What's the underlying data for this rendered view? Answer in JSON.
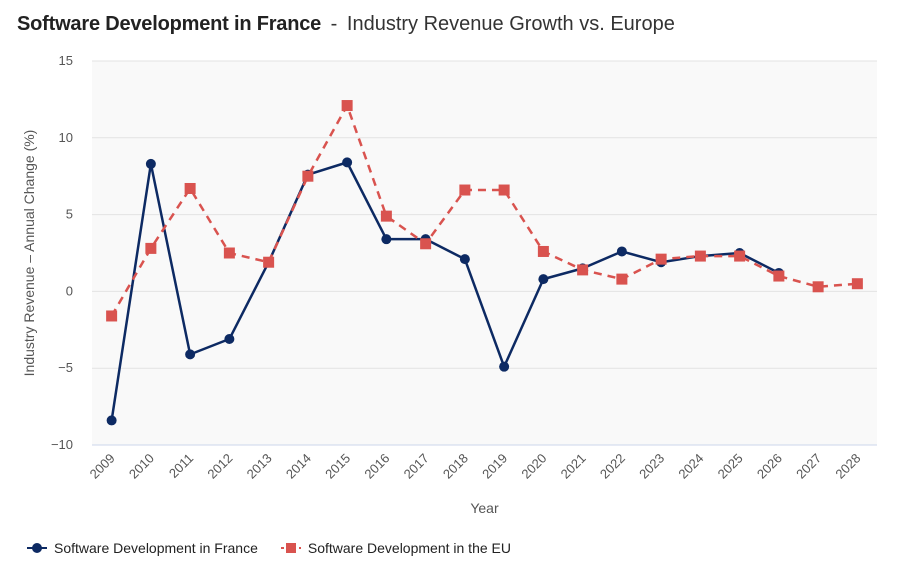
{
  "title": {
    "main": "Software Development in France",
    "separator": "-",
    "subtitle": "Industry Revenue Growth vs. Europe"
  },
  "colors": {
    "france": "#0d2a63",
    "eu": "#d9534f",
    "plot_background": "#f9f9f9",
    "gridline": "#e3e3e3",
    "axis_line": "#ccd6eb"
  },
  "chart_data": {
    "type": "line",
    "title": "Software Development in France - Industry Revenue Growth vs. Europe",
    "xlabel": "Year",
    "ylabel": "Industry Revenue – Annual Change (%)",
    "ylim": [
      -10,
      15
    ],
    "yticks": [
      -10,
      -5,
      0,
      5,
      10,
      15
    ],
    "ytick_labels": [
      "−10",
      "−5",
      "0",
      "5",
      "10",
      "15"
    ],
    "grid": true,
    "legend_position": "bottom-left",
    "x": [
      "2009",
      "2010",
      "2011",
      "2012",
      "2013",
      "2014",
      "2015",
      "2016",
      "2017",
      "2018",
      "2019",
      "2020",
      "2021",
      "2022",
      "2023",
      "2024",
      "2025",
      "2026",
      "2027",
      "2028"
    ],
    "series": [
      {
        "name": "Software Development in France",
        "marker": "circle",
        "line_style": "solid",
        "values": [
          -8.4,
          8.3,
          -4.1,
          -3.1,
          1.9,
          7.6,
          8.4,
          3.4,
          3.4,
          2.1,
          -4.9,
          0.8,
          1.5,
          2.6,
          1.9,
          2.3,
          2.5,
          1.2,
          null,
          null
        ]
      },
      {
        "name": "Software Development in the EU",
        "marker": "square",
        "line_style": "dashed",
        "values": [
          -1.6,
          2.8,
          6.7,
          2.5,
          1.9,
          7.5,
          12.1,
          4.9,
          3.1,
          6.6,
          6.6,
          2.6,
          1.4,
          0.8,
          2.1,
          2.3,
          2.3,
          1.0,
          0.3,
          0.5
        ]
      }
    ]
  }
}
